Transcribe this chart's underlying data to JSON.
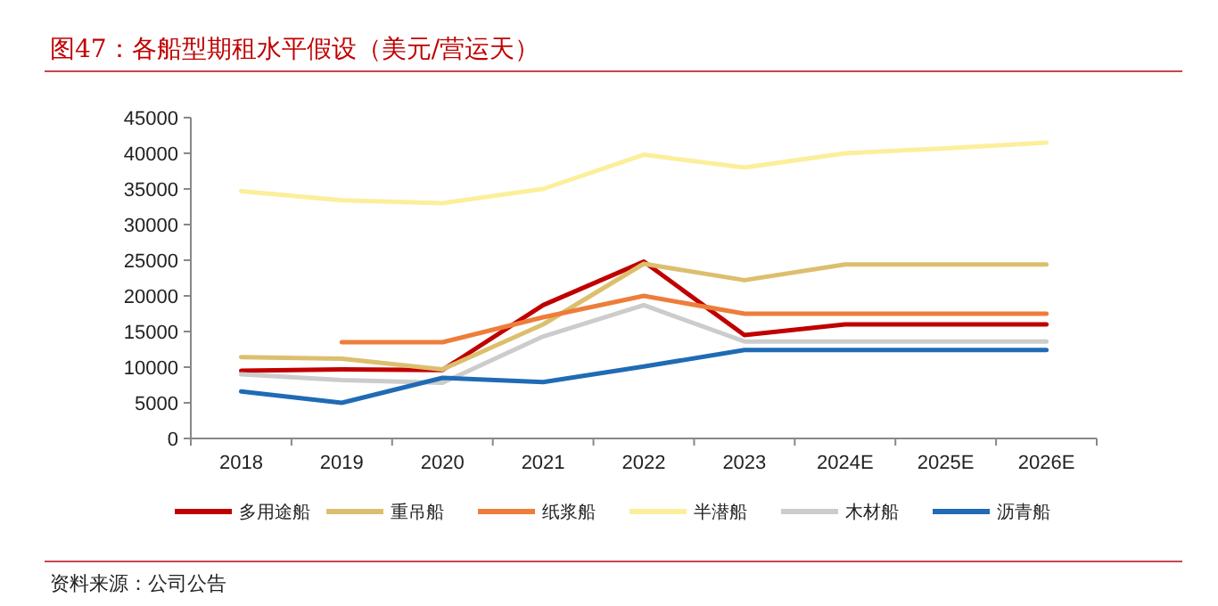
{
  "chart_data": {
    "type": "line",
    "title": "图47：各船型期租水平假设（美元/营运天）",
    "annotations": [
      "资料来源：公司公告"
    ],
    "categories": [
      "2018",
      "2019",
      "2020",
      "2021",
      "2022",
      "2023",
      "2024E",
      "2025E",
      "2026E"
    ],
    "ylim": [
      0,
      45000
    ],
    "yticks": [
      0,
      5000,
      10000,
      15000,
      20000,
      25000,
      30000,
      35000,
      40000,
      45000
    ],
    "grid": false,
    "legend": "bottom",
    "line_style": "solid",
    "marker": "none",
    "series": [
      {
        "name": "多用途船",
        "color": "#c00000",
        "values": [
          9500,
          9700,
          9600,
          18700,
          24800,
          14500,
          16000,
          16000,
          16000
        ]
      },
      {
        "name": "重吊船",
        "color": "#dcbf6e",
        "values": [
          11400,
          11200,
          9700,
          16000,
          24500,
          22200,
          24400,
          24400,
          24400
        ]
      },
      {
        "name": "纸浆船",
        "color": "#ee7d3a",
        "values": [
          null,
          13500,
          13500,
          17000,
          20000,
          17500,
          17500,
          17500,
          17500
        ]
      },
      {
        "name": "半潜船",
        "color": "#fbef9b",
        "values": [
          34700,
          33400,
          33000,
          35000,
          39800,
          38000,
          40000,
          40700,
          41500
        ]
      },
      {
        "name": "木材船",
        "color": "#cccccc",
        "values": [
          9000,
          8200,
          7800,
          14300,
          18700,
          13600,
          13600,
          13600,
          13600
        ]
      },
      {
        "name": "沥青船",
        "color": "#1f6bb5",
        "values": [
          6600,
          5000,
          8500,
          7900,
          10100,
          12400,
          12400,
          12400,
          12400
        ]
      }
    ]
  }
}
